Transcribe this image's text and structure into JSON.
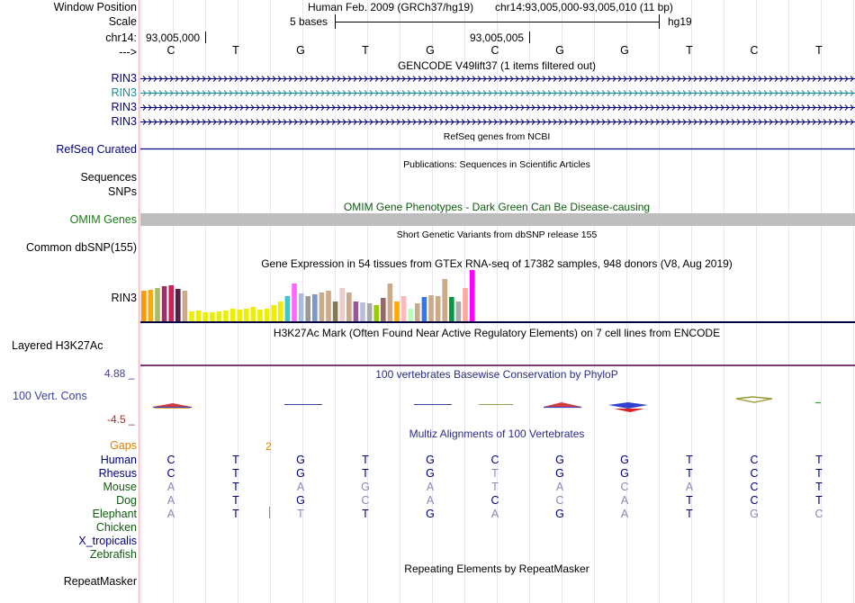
{
  "labels": {
    "window_position": "Window Position",
    "scale": "Scale",
    "chrom": "chr14:",
    "strand": "--->",
    "rin3_a": "RIN3",
    "rin3_b": "RIN3",
    "rin3_c": "RIN3",
    "rin3_d": "RIN3",
    "refseq": "RefSeq Curated",
    "sequences": "Sequences",
    "snps": "SNPs",
    "omim": "OMIM Genes",
    "dbsnp": "Common dbSNP(155)",
    "gtex": "RIN3",
    "h3k27ac": "Layered H3K27Ac",
    "cons_max": "4.88 _",
    "cons": "100 Vert. Cons",
    "cons_min": "-4.5 _",
    "gaps": "Gaps",
    "human": "Human",
    "rhesus": "Rhesus",
    "mouse": "Mouse",
    "dog": "Dog",
    "elephant": "Elephant",
    "chicken": "Chicken",
    "xtrop": "X_tropicalis",
    "zebrafish": "Zebrafish",
    "repeatmasker": "RepeatMasker"
  },
  "ruler": {
    "assembly_title": "Human Feb. 2009 (GRCh37/hg19)",
    "position": "chr14:93,005,000-93,005,010 (11 bp)",
    "scale_text": "5 bases",
    "db": "hg19",
    "coord1": "93,005,000",
    "coord2": "93,005,005"
  },
  "bases": [
    "C",
    "T",
    "G",
    "T",
    "G",
    "C",
    "G",
    "G",
    "T",
    "C",
    "T"
  ],
  "tracks": {
    "gencode": "GENCODE V49lift37 (1 items filtered out)",
    "refseq": "RefSeq genes from NCBI",
    "publications": "Publications: Sequences in Scientific Articles",
    "omim": "OMIM Gene Phenotypes - Dark Green Can Be Disease-causing",
    "dbsnp": "Short Genetic Variants from dbSNP release 155",
    "gtex": "Gene Expression in 54 tissues from GTEx RNA-seq of 17382 samples, 948 donors (V8, Aug 2019)",
    "h3k27ac": "H3K27Ac Mark (Often Found Near Active Regulatory Elements) on 7 cell lines from ENCODE",
    "phylop": "100 vertebrates Basewise Conservation by PhyloP",
    "multiz": "Multiz Alignments of 100 Vertebrates",
    "repeatmasker": "Repeating Elements by RepeatMasker"
  },
  "gaps_value": "2",
  "alignments": {
    "human": [
      "C",
      "T",
      "G",
      "T",
      "G",
      "C",
      "G",
      "G",
      "T",
      "C",
      "T"
    ],
    "rhesus": [
      "C",
      "T",
      "G",
      "T",
      "G",
      "T",
      "G",
      "G",
      "T",
      "C",
      "T"
    ],
    "mouse": [
      "A",
      "T",
      "A",
      "G",
      "A",
      "T",
      "A",
      "C",
      "A",
      "C",
      "T"
    ],
    "dog": [
      "A",
      "T",
      "G",
      "C",
      "A",
      "C",
      "C",
      "A",
      "T",
      "C",
      "T"
    ],
    "elephant": [
      "A",
      "T",
      "T",
      "T",
      "G",
      "A",
      "G",
      "A",
      "T",
      "G",
      "C"
    ]
  },
  "gtex_colors": [
    "#ff9900",
    "#ffaa00",
    "#aabb66",
    "#993366",
    "#cc2255",
    "#552244",
    "#ccaa88",
    "#eeee00",
    "#eeee00",
    "#eeee00",
    "#eeee00",
    "#eeee00",
    "#eeee00",
    "#eeee00",
    "#eeee00",
    "#eeee00",
    "#eeee00",
    "#eeee00",
    "#eeee00",
    "#eeee00",
    "#eeee00",
    "#33cccc",
    "#ff66ff",
    "#aabbdd",
    "#999999",
    "#7799cc",
    "#ccaa88",
    "#ccaa88",
    "#887755",
    "#eecccc",
    "#ccaa88",
    "#995599",
    "#bbbbdd",
    "#aaaaaa",
    "#99cc00",
    "#996666",
    "#ccaa88",
    "#ffaa00",
    "#ffbbbb",
    "#bbffbb",
    "#ccaa88",
    "#3377ee",
    "#ccaa88",
    "#ccaa88",
    "#ccaa88",
    "#009944",
    "#aaaaaa",
    "#ffaa99",
    "#ff00ff"
  ],
  "gtex_values": [
    34,
    35,
    37,
    39,
    40,
    36,
    34,
    11,
    12,
    10,
    10,
    11,
    12,
    14,
    13,
    14,
    16,
    13,
    14,
    18,
    22,
    28,
    42,
    31,
    28,
    30,
    32,
    34,
    22,
    37,
    32,
    22,
    21,
    20,
    18,
    26,
    42,
    22,
    28,
    14,
    20,
    27,
    29,
    28,
    47,
    27,
    22,
    37,
    57
  ]
}
